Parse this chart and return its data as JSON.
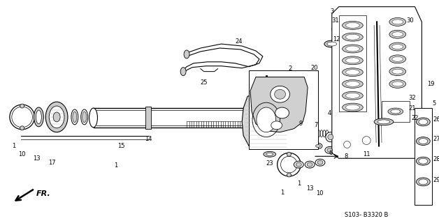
{
  "bg_color": "#ffffff",
  "line_color": "#000000",
  "gray_light": "#cccccc",
  "gray_dark": "#888888",
  "gray_med": "#aaaaaa",
  "fig_width": 6.28,
  "fig_height": 3.2,
  "dpi": 100,
  "part_number": "S103- B3320 B"
}
